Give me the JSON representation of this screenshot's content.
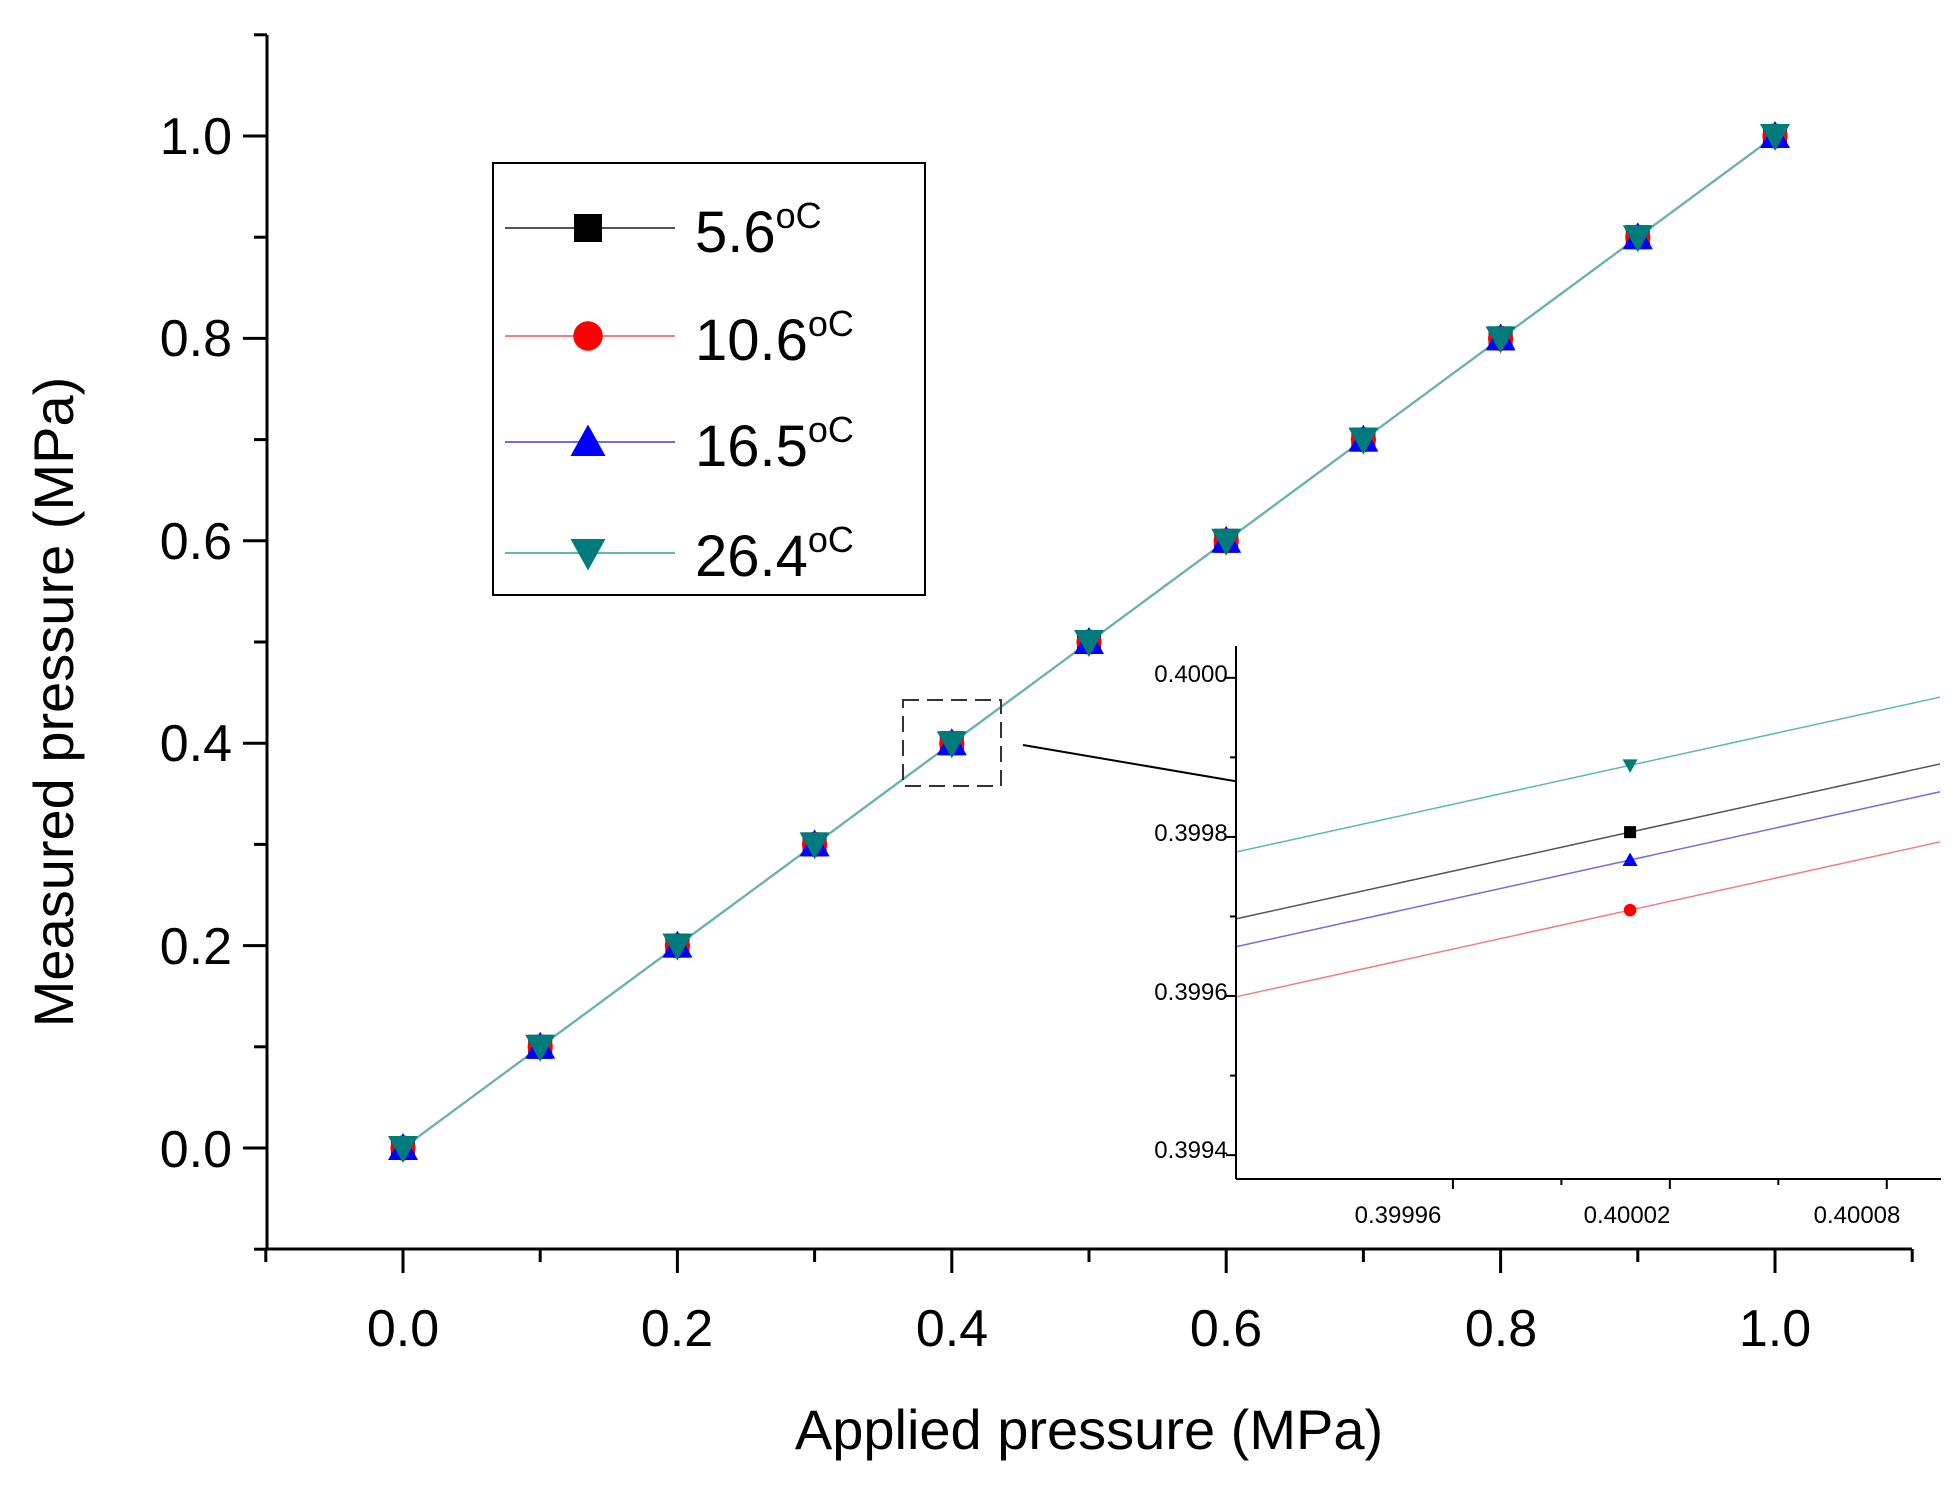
{
  "chart_data": {
    "type": "line",
    "xlabel": "Applied pressure (MPa)",
    "ylabel": "Measured pressure (MPa)",
    "xlim": [
      -0.1,
      1.1
    ],
    "ylim": [
      -0.1,
      1.1
    ],
    "x_ticks": [
      "0.0",
      "0.2",
      "0.4",
      "0.6",
      "0.8",
      "1.0"
    ],
    "y_ticks": [
      "0.0",
      "0.2",
      "0.4",
      "0.6",
      "0.8",
      "1.0"
    ],
    "x": [
      0.0,
      0.1,
      0.2,
      0.3,
      0.4,
      0.5,
      0.6,
      0.7,
      0.8,
      0.9,
      1.0
    ],
    "series": [
      {
        "name": "5.6",
        "unit": "oC",
        "color": "#000000",
        "line_color": "#555555",
        "marker": "square",
        "values": [
          0.0,
          0.1,
          0.2,
          0.3,
          0.4,
          0.5,
          0.6,
          0.7,
          0.8,
          0.9,
          1.0
        ]
      },
      {
        "name": "10.6",
        "unit": "oC",
        "color": "#ff0000",
        "line_color": "#f08080",
        "marker": "circle",
        "values": [
          0.0,
          0.1,
          0.2,
          0.3,
          0.4,
          0.5,
          0.6,
          0.7,
          0.8,
          0.9,
          1.0
        ]
      },
      {
        "name": "16.5",
        "unit": "oC",
        "color": "#0000ff",
        "line_color": "#7070d8",
        "marker": "triangle-up",
        "values": [
          0.0,
          0.1,
          0.2,
          0.3,
          0.4,
          0.5,
          0.6,
          0.7,
          0.8,
          0.9,
          1.0
        ]
      },
      {
        "name": "26.4",
        "unit": "oC",
        "color": "#007b7b",
        "line_color": "#60b8b0",
        "marker": "triangle-down",
        "values": [
          0.0,
          0.1,
          0.2,
          0.3,
          0.4,
          0.5,
          0.6,
          0.7,
          0.8,
          0.9,
          1.0
        ]
      }
    ],
    "legend_position": "top-left",
    "grid": false,
    "zoom_region": {
      "x": 0.4,
      "y": 0.4
    },
    "inset": {
      "xlim": [
        0.3999,
        0.400095
      ],
      "ylim": [
        0.39937,
        0.40004
      ],
      "x_ticks": [
        "0.39996",
        "0.40002",
        "0.40008"
      ],
      "x_tick_values": [
        0.39996,
        0.40002,
        0.40008
      ],
      "y_ticks": [
        "0.3994",
        "0.3996",
        "0.3998",
        "0.4000"
      ],
      "y_tick_values": [
        0.3994,
        0.3996,
        0.3998,
        0.4
      ],
      "point_x": 0.400009,
      "points": [
        {
          "series": "5.6",
          "y": 0.399806
        },
        {
          "series": "10.6",
          "y": 0.399708
        },
        {
          "series": "16.5",
          "y": 0.399771
        },
        {
          "series": "26.4",
          "y": 0.39989
        }
      ]
    }
  }
}
